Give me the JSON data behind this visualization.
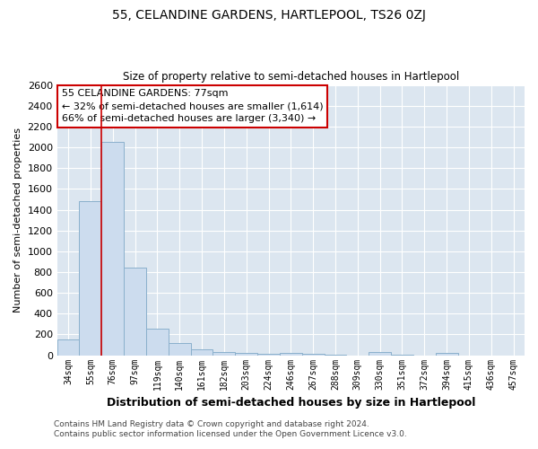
{
  "title_main": "55, CELANDINE GARDENS, HARTLEPOOL, TS26 0ZJ",
  "title_sub": "Size of property relative to semi-detached houses in Hartlepool",
  "xlabel": "Distribution of semi-detached houses by size in Hartlepool",
  "ylabel": "Number of semi-detached properties",
  "categories": [
    "34sqm",
    "55sqm",
    "76sqm",
    "97sqm",
    "119sqm",
    "140sqm",
    "161sqm",
    "182sqm",
    "203sqm",
    "224sqm",
    "246sqm",
    "267sqm",
    "288sqm",
    "309sqm",
    "330sqm",
    "351sqm",
    "372sqm",
    "394sqm",
    "415sqm",
    "436sqm",
    "457sqm"
  ],
  "values": [
    150,
    1480,
    2050,
    840,
    255,
    115,
    60,
    35,
    25,
    10,
    25,
    10,
    5,
    0,
    30,
    5,
    0,
    20,
    0,
    0,
    0
  ],
  "bar_color": "#ccdcee",
  "bar_edge_color": "#8ab0cc",
  "red_line_x": 1.5,
  "annotation_title": "55 CELANDINE GARDENS: 77sqm",
  "annotation_line1": "← 32% of semi-detached houses are smaller (1,614)",
  "annotation_line2": "66% of semi-detached houses are larger (3,340) →",
  "footer1": "Contains HM Land Registry data © Crown copyright and database right 2024.",
  "footer2": "Contains public sector information licensed under the Open Government Licence v3.0.",
  "ylim": [
    0,
    2600
  ],
  "yticks": [
    0,
    200,
    400,
    600,
    800,
    1000,
    1200,
    1400,
    1600,
    1800,
    2000,
    2200,
    2400,
    2600
  ],
  "background_color": "#ffffff",
  "plot_bg_color": "#dce6f0",
  "annotation_box_color": "#ffffff",
  "annotation_box_edge": "#cc0000",
  "grid_color": "#ffffff"
}
